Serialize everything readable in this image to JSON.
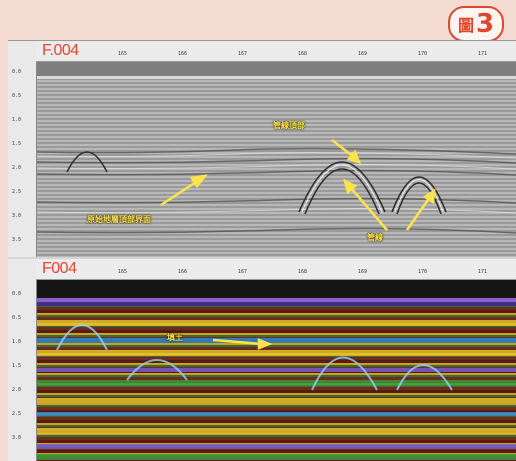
{
  "figure_badge": {
    "prefix": "圖",
    "number": "3"
  },
  "top_panel": {
    "file_label": "F.004",
    "depth_ticks": [
      "0.0",
      "0.5",
      "1.0",
      "1.5",
      "2.0",
      "2.5",
      "3.0",
      "3.5"
    ],
    "distance_ticks": [
      "165",
      "166",
      "167",
      "168",
      "169",
      "170",
      "171"
    ],
    "annotations": {
      "pipe_top": "管線頂部",
      "layer_interface": "原始地層頂部界面",
      "pipe": "管線"
    }
  },
  "bottom_panel": {
    "file_label": "F004",
    "depth_ticks": [
      "0.0",
      "0.5",
      "1.0",
      "1.5",
      "2.0",
      "2.5",
      "3.0"
    ],
    "distance_ticks": [
      "165",
      "166",
      "167",
      "168",
      "169",
      "170",
      "171"
    ],
    "annotations": {
      "backfill": "填土"
    }
  },
  "colors": {
    "background": "#f4dcd2",
    "accent": "#e0462f",
    "annotation": "#ffe34a",
    "arrow": "#ffe34a"
  }
}
